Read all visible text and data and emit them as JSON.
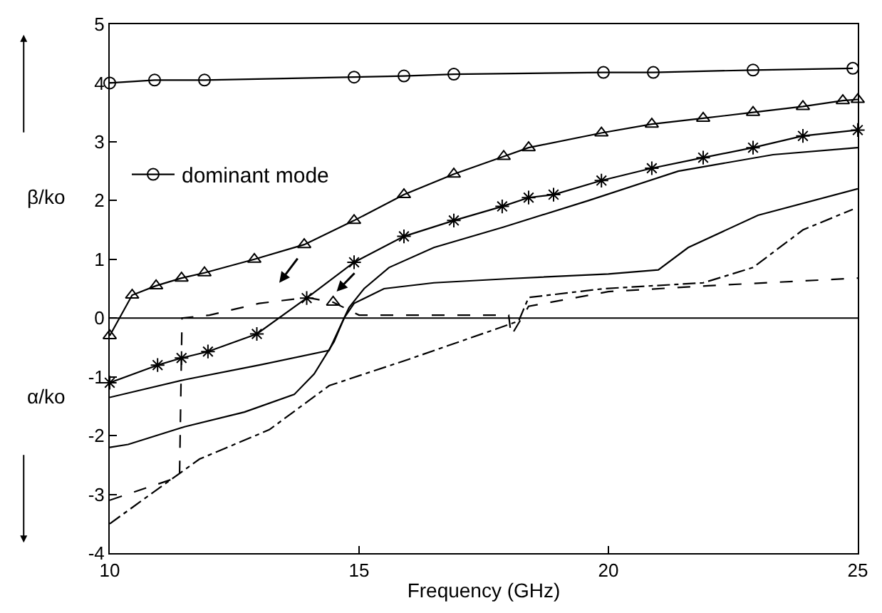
{
  "chart_data": {
    "type": "line",
    "xlabel": "Frequency (GHz)",
    "annotations": [
      "β/ko",
      "α/ko"
    ],
    "xlim": [
      10,
      25
    ],
    "xticks": [
      10,
      15,
      20,
      25
    ],
    "ylim": [
      -4,
      5
    ],
    "yticks": [
      -4,
      -3,
      -2,
      -1,
      0,
      1,
      2,
      3,
      4,
      5
    ],
    "legend": "top left",
    "ref_lines": [
      {
        "axis": "y",
        "value": 0,
        "color": "#000000",
        "line_style": "solid"
      }
    ],
    "series": [
      {
        "name": "dominant mode",
        "color": "#000000",
        "marker": "circle",
        "line_style": "solid",
        "x": [
          10,
          10.9,
          11.9,
          14.9,
          15.9,
          16.9,
          19.9,
          20.9,
          22.9,
          24.9
        ],
        "values": [
          4.0,
          4.05,
          4.05,
          4.1,
          4.12,
          4.15,
          4.18,
          4.18,
          4.22,
          4.25
        ]
      },
      {
        "color": "#000000",
        "marker": "triangle",
        "line_style": "solid",
        "x": [
          10,
          10.45,
          10.93,
          11.44,
          11.9,
          12.9,
          13.9,
          14.9,
          15.9,
          16.9,
          17.9,
          18.4,
          19.86,
          20.87,
          21.9,
          22.9,
          23.9,
          24.7,
          25
        ],
        "values": [
          -0.3,
          0.39,
          0.55,
          0.68,
          0.77,
          1.0,
          1.25,
          1.66,
          2.1,
          2.45,
          2.75,
          2.9,
          3.15,
          3.3,
          3.4,
          3.5,
          3.6,
          3.7,
          3.72
        ]
      },
      {
        "color": "#000000",
        "marker": "cross",
        "line_style": "solid",
        "x": [
          10,
          10.96,
          11.44,
          11.97,
          12.95,
          13.95,
          14.9,
          15.9,
          16.9,
          17.87,
          18.4,
          18.9,
          19.86,
          20.87,
          21.9,
          22.9,
          23.9,
          25
        ],
        "values": [
          -1.1,
          -0.8,
          -0.68,
          -0.57,
          -0.27,
          0.34,
          0.95,
          1.39,
          1.66,
          1.9,
          2.05,
          2.1,
          2.34,
          2.55,
          2.73,
          2.9,
          3.1,
          3.2
        ]
      },
      {
        "color": "#000000",
        "marker": "none",
        "line_style": "solid",
        "x": [
          10,
          10.37,
          11.5,
          12.7,
          13.7,
          14.1,
          14.5,
          14.7,
          14.8,
          15.1,
          15.6,
          16.5,
          17.9,
          19.6,
          21.4,
          23.3,
          25
        ],
        "values": [
          -2.2,
          -2.15,
          -1.85,
          -1.6,
          -1.3,
          -0.95,
          -0.4,
          0.0,
          0.18,
          0.5,
          0.86,
          1.2,
          1.55,
          2.0,
          2.5,
          2.78,
          2.9
        ]
      },
      {
        "color": "#000000",
        "marker": "none",
        "line_style": "solid",
        "x": [
          10,
          11.5,
          13,
          14.4,
          14.7,
          14.9,
          15.5,
          16.5,
          18,
          20,
          21,
          21.6,
          23,
          25
        ],
        "values": [
          -1.35,
          -1.05,
          -0.8,
          -0.55,
          0.0,
          0.25,
          0.5,
          0.6,
          0.67,
          0.75,
          0.82,
          1.2,
          1.75,
          2.2
        ]
      },
      {
        "color": "#000000",
        "marker": "none",
        "line_style": "dashed",
        "x": [
          10,
          11.4,
          11.45,
          12,
          13,
          13.95,
          14.48,
          15,
          18,
          18.05,
          18.4,
          20,
          22,
          25
        ],
        "values": [
          -3.1,
          -2.7,
          0.0,
          0.05,
          0.25,
          0.35,
          0.27,
          0.05,
          0.05,
          -0.3,
          0.2,
          0.45,
          0.55,
          0.68
        ]
      },
      {
        "color": "#000000",
        "marker": "none",
        "line_style": "dashdot",
        "x": [
          10,
          11.8,
          13.2,
          14.4,
          16.0,
          17.7,
          18.2,
          18.4,
          19.9,
          21.9,
          22.9,
          23.9,
          24.9
        ],
        "values": [
          -3.5,
          -2.4,
          -1.9,
          -1.15,
          -0.7,
          -0.2,
          -0.05,
          0.35,
          0.5,
          0.6,
          0.86,
          1.5,
          1.85
        ]
      },
      {
        "color": "#000000",
        "marker": "triangle",
        "line_style": "none",
        "x": [
          14.48
        ],
        "values": [
          0.27
        ]
      }
    ]
  }
}
